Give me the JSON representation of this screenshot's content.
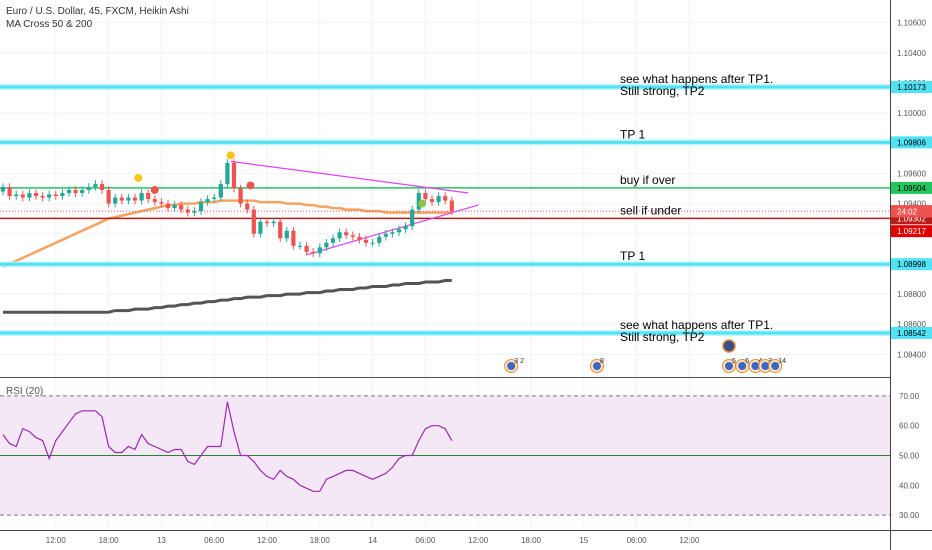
{
  "header": {
    "title": "Euro / U.S. Dollar, 45, FXCM, Heikin Ashi",
    "indicator": "MA Cross 50 & 200"
  },
  "rsi": {
    "label": "RSI (20)",
    "levels": [
      70,
      50,
      30
    ],
    "ticks": [
      "70.00",
      "60.00",
      "50.00",
      "40.00",
      "30.00"
    ],
    "values": [
      57,
      54,
      53,
      59,
      58,
      56,
      55,
      49,
      55,
      58,
      61,
      64,
      65,
      65,
      65,
      63,
      53,
      51,
      51,
      53,
      52,
      57,
      54,
      53,
      52,
      51,
      52,
      52,
      48,
      47,
      50,
      53,
      53,
      53,
      68,
      58,
      50,
      50,
      48,
      45,
      43,
      42,
      45,
      43,
      42,
      40,
      39,
      38,
      38,
      42,
      43,
      44,
      45,
      45,
      44,
      43,
      42,
      43,
      44,
      46,
      49,
      50,
      50,
      55,
      59,
      60,
      60,
      59,
      55
    ]
  },
  "chart_data": {
    "type": "candlestick",
    "symbol": "Euro / U.S. Dollar",
    "interval": "45",
    "source": "FXCM",
    "price_axis": {
      "min": 1.0825,
      "max": 1.1075,
      "ticks": [
        "1.10600",
        "1.10400",
        "1.10200",
        "1.10000",
        "1.09800",
        "1.09600",
        "1.09400",
        "1.09200",
        "1.09000",
        "1.08800",
        "1.08600",
        "1.08400"
      ],
      "tick_values": [
        1.106,
        1.104,
        1.102,
        1.1,
        1.098,
        1.096,
        1.094,
        1.092,
        1.09,
        1.088,
        1.086,
        1.084
      ]
    },
    "time_axis": {
      "labels": [
        "12:00",
        "18:00",
        "13",
        "06:00",
        "12:00",
        "18:00",
        "14",
        "06:00",
        "12:00",
        "18:00",
        "15",
        "06:00",
        "12:00"
      ],
      "bars": [
        8,
        16,
        24,
        32,
        40,
        48,
        56,
        64,
        72,
        80,
        88,
        96,
        104
      ]
    },
    "candles": [
      {
        "o": 1.0948,
        "c": 1.0951
      },
      {
        "o": 1.0951,
        "c": 1.0945
      },
      {
        "o": 1.0945,
        "c": 1.0946
      },
      {
        "o": 1.0946,
        "c": 1.0944
      },
      {
        "o": 1.0944,
        "c": 1.0947
      },
      {
        "o": 1.0947,
        "c": 1.0945
      },
      {
        "o": 1.0945,
        "c": 1.0944
      },
      {
        "o": 1.0944,
        "c": 1.0946
      },
      {
        "o": 1.0946,
        "c": 1.0945
      },
      {
        "o": 1.0945,
        "c": 1.0947
      },
      {
        "o": 1.0947,
        "c": 1.0949
      },
      {
        "o": 1.0949,
        "c": 1.0947
      },
      {
        "o": 1.0947,
        "c": 1.0949
      },
      {
        "o": 1.0949,
        "c": 1.0951
      },
      {
        "o": 1.0951,
        "c": 1.0953
      },
      {
        "o": 1.0953,
        "c": 1.0949
      },
      {
        "o": 1.0949,
        "c": 1.094
      },
      {
        "o": 1.094,
        "c": 1.0944
      },
      {
        "o": 1.0944,
        "c": 1.0942
      },
      {
        "o": 1.0942,
        "c": 1.0944
      },
      {
        "o": 1.0944,
        "c": 1.0942
      },
      {
        "o": 1.0942,
        "c": 1.0947
      },
      {
        "o": 1.0947,
        "c": 1.0943
      },
      {
        "o": 1.0943,
        "c": 1.0941
      },
      {
        "o": 1.0941,
        "c": 1.094
      },
      {
        "o": 1.094,
        "c": 1.0937
      },
      {
        "o": 1.0937,
        "c": 1.0939
      },
      {
        "o": 1.0939,
        "c": 1.0936
      },
      {
        "o": 1.0936,
        "c": 1.0934
      },
      {
        "o": 1.0934,
        "c": 1.0935
      },
      {
        "o": 1.0935,
        "c": 1.0941
      },
      {
        "o": 1.0941,
        "c": 1.0943
      },
      {
        "o": 1.0943,
        "c": 1.0944
      },
      {
        "o": 1.0944,
        "c": 1.0953
      },
      {
        "o": 1.0953,
        "c": 1.0967
      },
      {
        "o": 1.0967,
        "c": 1.095
      },
      {
        "o": 1.095,
        "c": 1.094
      },
      {
        "o": 1.094,
        "c": 1.0936
      },
      {
        "o": 1.0936,
        "c": 1.092
      },
      {
        "o": 1.092,
        "c": 1.0928
      },
      {
        "o": 1.0928,
        "c": 1.0927
      },
      {
        "o": 1.0927,
        "c": 1.0928
      },
      {
        "o": 1.0928,
        "c": 1.0917
      },
      {
        "o": 1.0917,
        "c": 1.0922
      },
      {
        "o": 1.0922,
        "c": 1.0912
      },
      {
        "o": 1.0912,
        "c": 1.0912
      },
      {
        "o": 1.0912,
        "c": 1.0908
      },
      {
        "o": 1.0908,
        "c": 1.0907
      },
      {
        "o": 1.0907,
        "c": 1.0911
      },
      {
        "o": 1.0911,
        "c": 1.0914
      },
      {
        "o": 1.0914,
        "c": 1.0917
      },
      {
        "o": 1.0917,
        "c": 1.0921
      },
      {
        "o": 1.0921,
        "c": 1.0919
      },
      {
        "o": 1.0919,
        "c": 1.0918
      },
      {
        "o": 1.0918,
        "c": 1.0916
      },
      {
        "o": 1.0916,
        "c": 1.0914
      },
      {
        "o": 1.0914,
        "c": 1.0914
      },
      {
        "o": 1.0914,
        "c": 1.0918
      },
      {
        "o": 1.0918,
        "c": 1.092
      },
      {
        "o": 1.092,
        "c": 1.0921
      },
      {
        "o": 1.0921,
        "c": 1.0923
      },
      {
        "o": 1.0923,
        "c": 1.0925
      },
      {
        "o": 1.0925,
        "c": 1.0936
      },
      {
        "o": 1.0936,
        "c": 1.0947
      },
      {
        "o": 1.0947,
        "c": 1.0943
      },
      {
        "o": 1.0943,
        "c": 1.0941
      },
      {
        "o": 1.0941,
        "c": 1.0945
      },
      {
        "o": 1.0945,
        "c": 1.0942
      },
      {
        "o": 1.0942,
        "c": 1.0935
      }
    ],
    "ma50": [
      1.0898,
      1.09,
      1.0902,
      1.0904,
      1.0906,
      1.0908,
      1.091,
      1.0912,
      1.0914,
      1.0916,
      1.0918,
      1.092,
      1.0922,
      1.0924,
      1.0926,
      1.0928,
      1.093,
      1.0931,
      1.0932,
      1.0933,
      1.0934,
      1.0935,
      1.0936,
      1.0937,
      1.0938,
      1.0939,
      1.0939,
      1.094,
      1.094,
      1.094,
      1.0941,
      1.0941,
      1.0941,
      1.0942,
      1.0942,
      1.0942,
      1.0942,
      1.0942,
      1.0942,
      1.0941,
      1.0941,
      1.0941,
      1.0941,
      1.094,
      1.094,
      1.094,
      1.0939,
      1.0939,
      1.0938,
      1.0938,
      1.0937,
      1.0937,
      1.0936,
      1.0936,
      1.0936,
      1.0935,
      1.0935,
      1.0935,
      1.0934,
      1.0934,
      1.0934,
      1.0934,
      1.0934,
      1.0934,
      1.0934,
      1.0934,
      1.0934,
      1.0934,
      1.0934
    ],
    "ma200": [
      1.0868,
      1.0868,
      1.0868,
      1.0868,
      1.0868,
      1.0868,
      1.0868,
      1.0868,
      1.0868,
      1.0868,
      1.0868,
      1.0868,
      1.0868,
      1.0868,
      1.0868,
      1.0868,
      1.0868,
      1.0869,
      1.0869,
      1.0869,
      1.087,
      1.087,
      1.087,
      1.0871,
      1.0871,
      1.0872,
      1.0872,
      1.0873,
      1.0873,
      1.0874,
      1.0874,
      1.0875,
      1.0875,
      1.0876,
      1.0876,
      1.0877,
      1.0877,
      1.0878,
      1.0878,
      1.0878,
      1.0879,
      1.0879,
      1.0879,
      1.088,
      1.088,
      1.088,
      1.0881,
      1.0881,
      1.0881,
      1.0882,
      1.0882,
      1.0883,
      1.0883,
      1.0883,
      1.0884,
      1.0884,
      1.0885,
      1.0885,
      1.0885,
      1.0886,
      1.0886,
      1.0887,
      1.0887,
      1.0887,
      1.0888,
      1.0888,
      1.0888,
      1.0889,
      1.0889
    ],
    "hlines": [
      {
        "price": 1.10173,
        "color": "#4fe3f5",
        "label": "1.10173",
        "text": "see what happens after TP1.",
        "text2": "Still strong, TP2"
      },
      {
        "price": 1.09806,
        "color": "#4fe3f5",
        "label": "1.09806",
        "text": "TP 1",
        "text2": ""
      },
      {
        "price": 1.09504,
        "color": "#22c55e",
        "label": "1.09504",
        "text": "buy if over",
        "text2": ""
      },
      {
        "price": 1.09302,
        "color": "#b91c1c",
        "label": "1.09302",
        "text": "sell if under",
        "text2": ""
      },
      {
        "price": 1.08998,
        "color": "#4fe3f5",
        "label": "1.08998",
        "text": "TP 1",
        "text2": ""
      },
      {
        "price": 1.08542,
        "color": "#4fe3f5",
        "label": "1.08542",
        "text": "see what happens after TP1.",
        "text2": "Still strong, TP2"
      }
    ],
    "price_tags": [
      {
        "price": 1.0935,
        "label": "1.09350",
        "color": "#ef5350"
      },
      {
        "price": 1.09302,
        "label": "24:02",
        "color": "#ef5350"
      },
      {
        "price": 1.09217,
        "label": "1.09217",
        "color": "#e00000"
      }
    ],
    "trendlines": [
      {
        "p1": {
          "bar": 34.5,
          "price": 1.0968
        },
        "p2": {
          "bar": 70.5,
          "price": 1.0947
        }
      },
      {
        "p1": {
          "bar": 46,
          "price": 1.0906
        },
        "p2": {
          "bar": 72,
          "price": 1.0939
        }
      }
    ],
    "signals": [
      {
        "bar": 20.5,
        "price": 1.0957,
        "color": "#f5c518"
      },
      {
        "bar": 34.5,
        "price": 1.0972,
        "color": "#f5c518"
      },
      {
        "bar": 23,
        "price": 1.0949,
        "color": "#ef5350"
      },
      {
        "bar": 37.5,
        "price": 1.0952,
        "color": "#ef5350"
      },
      {
        "bar": 63.5,
        "price": 1.094,
        "color": "#8bc34a"
      }
    ],
    "events": [
      {
        "bar": 77,
        "label": "3 2"
      },
      {
        "bar": 90,
        "label": "8"
      },
      {
        "bar": 110,
        "label": "5"
      },
      {
        "bar": 112,
        "label": "6"
      },
      {
        "bar": 114,
        "label": "4"
      },
      {
        "bar": 115.5,
        "label": "3"
      },
      {
        "bar": 117,
        "label": "14"
      }
    ]
  }
}
